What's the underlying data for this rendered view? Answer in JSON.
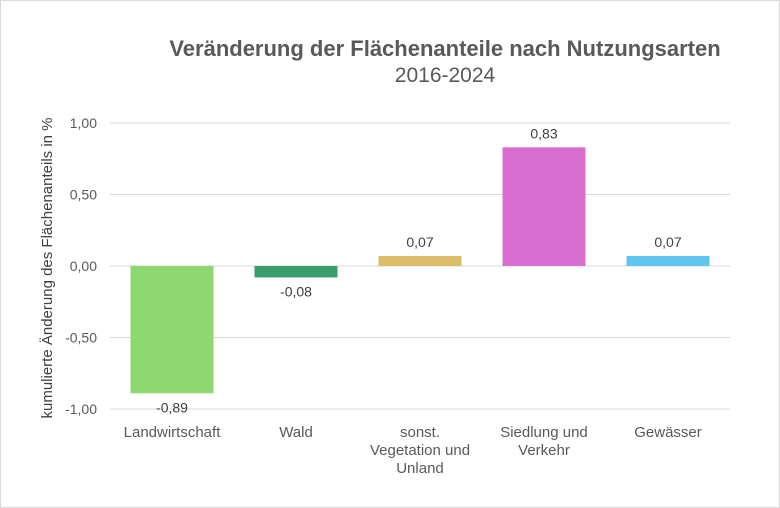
{
  "chart_data": {
    "type": "bar",
    "title": "Veränderung der Flächenanteile nach Nutzungsarten",
    "subtitle": "2016-2024",
    "ylabel": "kumulierte Änderung des Flächenanteils in %",
    "xlabel": "",
    "ylim": [
      -1.0,
      1.0
    ],
    "yticks": [
      1.0,
      0.5,
      0.0,
      -0.5,
      -1.0
    ],
    "ytick_labels": [
      "1,00",
      "0,50",
      "0,00",
      "-0,50",
      "-1,00"
    ],
    "grid": true,
    "categories": [
      [
        "Landwirtschaft"
      ],
      [
        "Wald"
      ],
      [
        "sonst.",
        "Vegetation  und",
        "Unland"
      ],
      [
        "Siedlung und",
        "Verkehr"
      ],
      [
        "Gewässer"
      ]
    ],
    "values": [
      -0.89,
      -0.08,
      0.07,
      0.83,
      0.07
    ],
    "value_labels": [
      "-0,89",
      "-0,08",
      "0,07",
      "0,83",
      "0,07"
    ],
    "colors": [
      "#8ed96f",
      "#3a9e6b",
      "#dcbd6a",
      "#d86fd0",
      "#5fc7ef"
    ]
  }
}
